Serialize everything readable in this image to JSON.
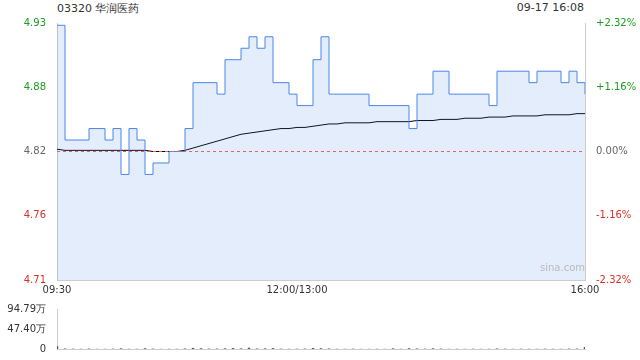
{
  "chart_data": [
    {
      "type": "line",
      "title": "03320 华润医药",
      "subtitle": "09-17 16:08",
      "annotations": [
        "sina.com"
      ],
      "categories": [
        "09:30",
        null,
        null,
        null,
        null,
        null,
        null,
        null,
        null,
        null,
        null,
        null,
        null,
        null,
        null,
        null,
        null,
        null,
        null,
        null,
        null,
        null,
        null,
        null,
        null,
        null,
        null,
        null,
        null,
        null,
        "12:00/13:00",
        null,
        null,
        null,
        null,
        null,
        null,
        null,
        null,
        null,
        null,
        null,
        null,
        null,
        null,
        null,
        null,
        null,
        null,
        null,
        null,
        null,
        null,
        null,
        null,
        null,
        null,
        null,
        null,
        null,
        null,
        null,
        null,
        null,
        null,
        null,
        "16:00"
      ],
      "series": [
        {
          "color": "#4a86e8",
          "values": [
            4.93,
            4.83,
            4.83,
            4.83,
            4.84,
            4.84,
            4.83,
            4.84,
            4.8,
            4.84,
            4.83,
            4.8,
            4.81,
            4.81,
            4.82,
            4.82,
            4.84,
            4.88,
            4.88,
            4.88,
            4.87,
            4.9,
            4.9,
            4.91,
            4.92,
            4.91,
            4.92,
            4.88,
            4.88,
            4.87,
            4.86,
            4.86,
            4.9,
            4.92,
            4.87,
            4.87,
            4.87,
            4.87,
            4.87,
            4.86,
            4.86,
            4.86,
            4.86,
            4.86,
            4.84,
            4.87,
            4.87,
            4.89,
            4.89,
            4.87,
            4.87,
            4.87,
            4.87,
            4.87,
            4.86,
            4.89,
            4.89,
            4.89,
            4.89,
            4.88,
            4.89,
            4.89,
            4.89,
            4.88,
            4.89,
            4.88,
            4.87
          ]
        },
        {
          "color": "#000000",
          "values": [
            4.822,
            4.821,
            4.821,
            4.821,
            4.821,
            4.821,
            4.821,
            4.821,
            4.821,
            4.821,
            4.821,
            4.821,
            4.82,
            4.82,
            4.82,
            4.82,
            4.821,
            4.823,
            4.825,
            4.827,
            4.829,
            4.831,
            4.833,
            4.835,
            4.836,
            4.837,
            4.838,
            4.839,
            4.84,
            4.84,
            4.841,
            4.841,
            4.842,
            4.843,
            4.844,
            4.844,
            4.845,
            4.845,
            4.845,
            4.845,
            4.846,
            4.846,
            4.846,
            4.846,
            4.846,
            4.847,
            4.847,
            4.847,
            4.848,
            4.848,
            4.848,
            4.849,
            4.849,
            4.849,
            4.85,
            4.85,
            4.85,
            4.851,
            4.851,
            4.851,
            4.851,
            4.852,
            4.852,
            4.852,
            4.852,
            4.853,
            4.853
          ]
        }
      ],
      "reference": 4.82,
      "ylim": [
        4.708,
        4.932
      ],
      "yticks": [
        {
          "value": 4.932,
          "label": "4.93"
        },
        {
          "value": 4.876,
          "label": "4.88"
        },
        4.82,
        {
          "value": 4.764,
          "label": "4.76"
        },
        {
          "value": 4.708,
          "label": "4.71"
        }
      ],
      "y2lim": [
        -2.32,
        2.32
      ],
      "y2ticks": [
        {
          "value": 2.32,
          "label": "+2.32%"
        },
        {
          "value": 1.16,
          "label": "+1.16%"
        },
        {
          "value": 0,
          "label": "0.00%"
        },
        {
          "value": -1.16,
          "label": "-1.16%"
        },
        {
          "value": -2.32,
          "label": "-2.32%"
        }
      ],
      "grid": false
    },
    {
      "type": "bar",
      "categories": [
        "09:30",
        null,
        null,
        null,
        null,
        null,
        null,
        null,
        null,
        null,
        null,
        null,
        null,
        null,
        null,
        null,
        null,
        null,
        null,
        null,
        null,
        null,
        null,
        null,
        null,
        null,
        null,
        null,
        null,
        null,
        "12:00/13:00",
        null,
        null,
        null,
        null,
        null,
        null,
        null,
        null,
        null,
        null,
        null,
        null,
        null,
        null,
        null,
        null,
        null,
        null,
        null,
        null,
        null,
        null,
        null,
        null,
        null,
        null,
        null,
        null,
        null,
        null,
        null,
        null,
        null,
        null,
        null,
        "16:00"
      ],
      "values": [
        6.5,
        1.2,
        0.8,
        0.6,
        1.0,
        0.5,
        0.4,
        0.8,
        1.5,
        0.6,
        0.5,
        1.8,
        0.9,
        0.4,
        0.6,
        0.5,
        1.2,
        2.5,
        1.8,
        0.9,
        1.0,
        1.6,
        2.2,
        1.4,
        3.0,
        1.2,
        1.5,
        2.0,
        0.8,
        0.6,
        0.7,
        0.9,
        2.4,
        1.8,
        1.2,
        0.6,
        0.5,
        0.8,
        0.4,
        0.5,
        0.6,
        0.4,
        1.5,
        0.6,
        1.8,
        1.2,
        0.8,
        1.6,
        0.9,
        0.5,
        0.6,
        0.4,
        0.7,
        0.5,
        0.6,
        1.2,
        0.8,
        0.5,
        0.7,
        0.6,
        0.5,
        0.8,
        0.6,
        0.5,
        0.9,
        1.0,
        4.5
      ],
      "color": "#555555",
      "ylim": [
        0,
        94.79
      ],
      "yticks": [
        {
          "value": 94.79,
          "label": "94.79万"
        },
        {
          "value": 47.4,
          "label": "47.40万"
        },
        0
      ],
      "tick_labels": "y",
      "grid": false
    }
  ]
}
